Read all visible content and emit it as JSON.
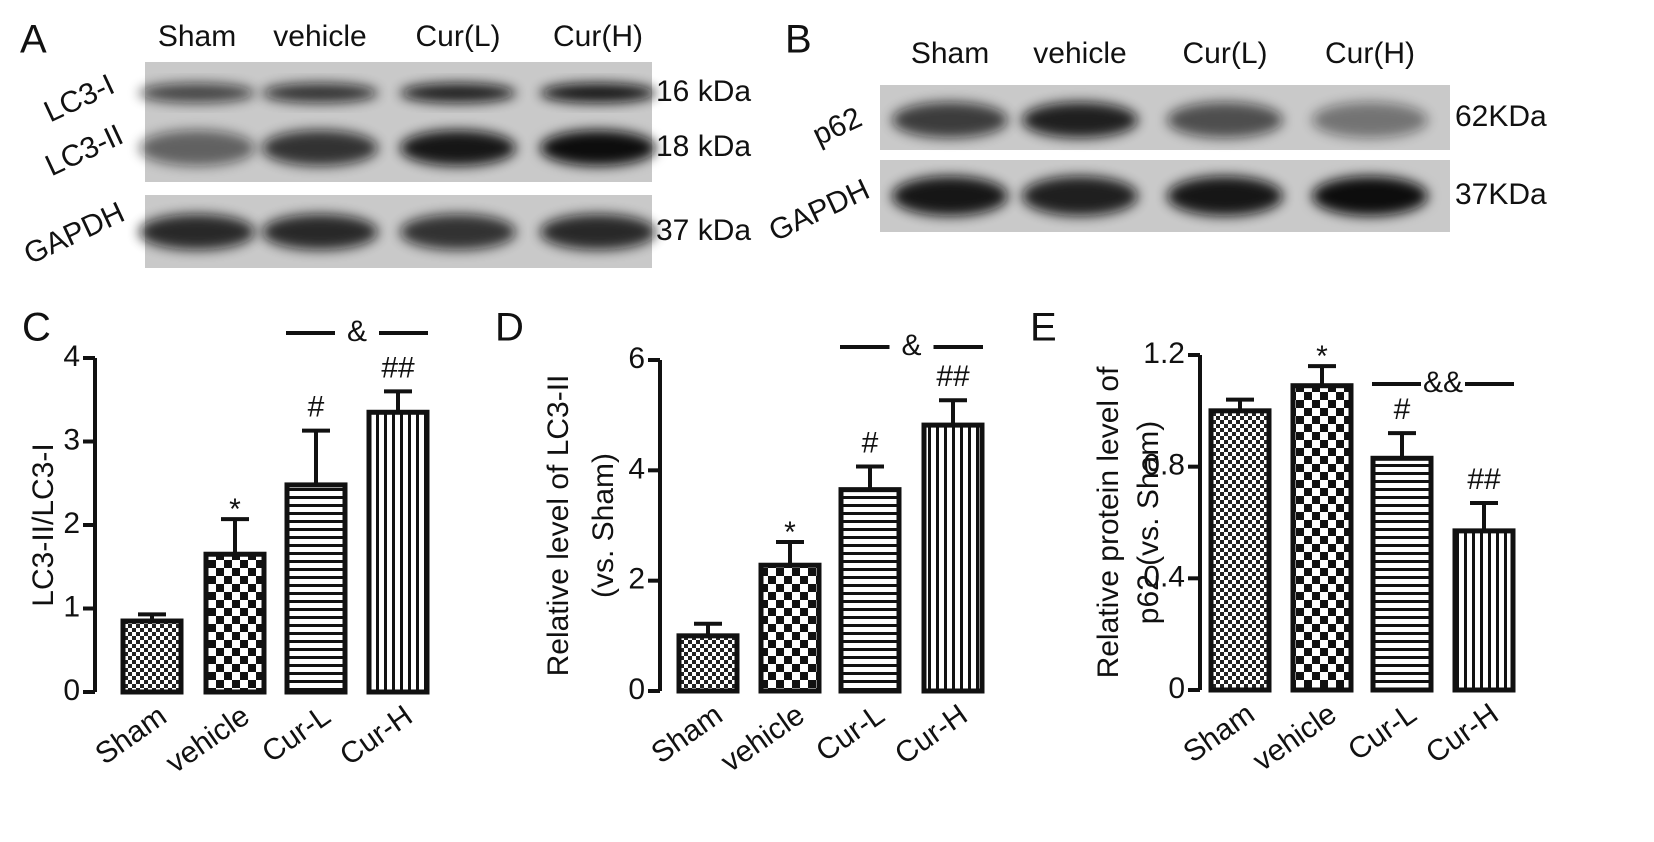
{
  "blots": [
    {
      "label": "A",
      "lanes": [
        "Sham",
        "vehicle",
        "Cur(L)",
        "Cur(H)"
      ],
      "proteins": [
        "LC3-I",
        "LC3-II",
        "GAPDH"
      ],
      "sizes": [
        "16 kDa",
        "18 kDa",
        "37 kDa"
      ]
    },
    {
      "label": "B",
      "lanes": [
        "Sham",
        "vehicle",
        "Cur(L)",
        "Cur(H)"
      ],
      "proteins": [
        "p62",
        "GAPDH"
      ],
      "sizes": [
        "62KDa",
        "37KDa"
      ]
    }
  ],
  "chart_data": [
    {
      "type": "bar",
      "label": "C",
      "ylabel": [
        "LC3-II/LC3-I"
      ],
      "categories": [
        "Sham",
        "vehicle",
        "Cur-L",
        "Cur-H"
      ],
      "values": [
        0.85,
        1.65,
        2.48,
        3.35
      ],
      "errors": [
        0.08,
        0.42,
        0.65,
        0.25
      ],
      "annotations": [
        null,
        "*",
        "#",
        "##"
      ],
      "bracket_label": "&",
      "patterns": [
        "fine-check",
        "check",
        "hstripe",
        "vstripe"
      ],
      "ylim": [
        0,
        4
      ],
      "yticks": [
        0,
        1,
        2,
        3,
        4
      ]
    },
    {
      "type": "bar",
      "label": "D",
      "ylabel": [
        "Relative level of LC3-II",
        "(vs. Sham)"
      ],
      "categories": [
        "Sham",
        "vehicle",
        "Cur-L",
        "Cur-H"
      ],
      "values": [
        1.0,
        2.28,
        3.65,
        4.82
      ],
      "errors": [
        0.22,
        0.42,
        0.42,
        0.45
      ],
      "annotations": [
        null,
        "*",
        "#",
        "##"
      ],
      "bracket_label": "&",
      "patterns": [
        "fine-check",
        "check",
        "hstripe",
        "vstripe"
      ],
      "ylim": [
        0,
        6
      ],
      "yticks": [
        0,
        2,
        4,
        6
      ]
    },
    {
      "type": "bar",
      "label": "E",
      "ylabel": [
        "Relative protein level of",
        "p62 (vs. Sham)"
      ],
      "categories": [
        "Sham",
        "vehicle",
        "Cur-L",
        "Cur-H"
      ],
      "values": [
        1.0,
        1.09,
        0.83,
        0.57
      ],
      "errors": [
        0.04,
        0.07,
        0.09,
        0.1
      ],
      "annotations": [
        null,
        "*",
        "#",
        "##"
      ],
      "bracket_label": "&&",
      "patterns": [
        "fine-check",
        "check",
        "hstripe",
        "vstripe"
      ],
      "ylim": [
        0,
        1.2
      ],
      "yticks": [
        0,
        0.4,
        0.8,
        1.2
      ]
    }
  ]
}
